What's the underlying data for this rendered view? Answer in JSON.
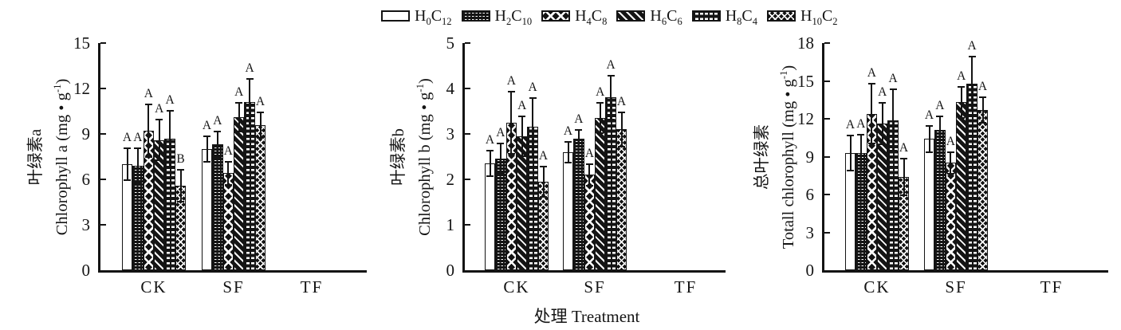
{
  "colors": {
    "ink": "#141414",
    "background": "#ffffff"
  },
  "legend": {
    "items": [
      {
        "h": "H",
        "h_sub": "0",
        "c": "C",
        "c_sub": "12",
        "pattern": "open"
      },
      {
        "h": "H",
        "h_sub": "2",
        "c": "C",
        "c_sub": "10",
        "pattern": "fine-dot-grid"
      },
      {
        "h": "H",
        "h_sub": "4",
        "c": "C",
        "c_sub": "8",
        "pattern": "diamond-lattice"
      },
      {
        "h": "H",
        "h_sub": "6",
        "c": "C",
        "c_sub": "6",
        "pattern": "diagonal-stripes"
      },
      {
        "h": "H",
        "h_sub": "8",
        "c": "C",
        "c_sub": "4",
        "pattern": "dash-grid"
      },
      {
        "h": "H",
        "h_sub": "10",
        "c": "C",
        "c_sub": "2",
        "pattern": "dense-diamond"
      }
    ]
  },
  "xlabel": {
    "zh": "处理",
    "en": "Treatment"
  },
  "chart_data": [
    {
      "type": "bar",
      "panel": "chlorophyll-a",
      "ylabel_zh": "叶绿素a",
      "ylabel_en_pre": "Chlorophyll a (mg • g",
      "ylabel_sup": "-1",
      "ylabel_en_post": ")",
      "ylim": [
        0,
        15
      ],
      "yticks": [
        0,
        3,
        6,
        9,
        12,
        15
      ],
      "categories": [
        "CK",
        "SF",
        "TF"
      ],
      "series_order": [
        "H0C12",
        "H2C10",
        "H4C8",
        "H6C6",
        "H8C4",
        "H10C2"
      ],
      "groups": [
        {
          "label": "CK",
          "values": [
            7.0,
            6.9,
            9.2,
            8.6,
            8.7,
            5.6
          ],
          "errors": [
            1.1,
            1.2,
            1.8,
            1.4,
            1.9,
            1.1
          ],
          "letters": [
            "A",
            "A",
            "A",
            "A",
            "A",
            "B"
          ]
        },
        {
          "label": "SF",
          "values": [
            8.0,
            8.3,
            6.4,
            10.1,
            11.1,
            9.6
          ],
          "errors": [
            0.9,
            0.9,
            0.8,
            1.0,
            1.6,
            0.9
          ],
          "letters": [
            "A",
            "A",
            "A",
            "A",
            "A",
            "A"
          ]
        },
        {
          "label": "TF",
          "values": [],
          "errors": [],
          "letters": []
        }
      ]
    },
    {
      "type": "bar",
      "panel": "chlorophyll-b",
      "ylabel_zh": "叶绿素b",
      "ylabel_en_pre": "Chlorophyll b (mg • g",
      "ylabel_sup": "-1",
      "ylabel_en_post": ")",
      "ylim": [
        0,
        5
      ],
      "yticks": [
        0,
        1,
        2,
        3,
        4,
        5
      ],
      "categories": [
        "CK",
        "SF",
        "TF"
      ],
      "series_order": [
        "H0C12",
        "H2C10",
        "H4C8",
        "H6C6",
        "H8C4",
        "H10C2"
      ],
      "groups": [
        {
          "label": "CK",
          "values": [
            2.35,
            2.45,
            3.25,
            2.95,
            3.15,
            1.95
          ],
          "errors": [
            0.3,
            0.35,
            0.7,
            0.45,
            0.65,
            0.35
          ],
          "letters": [
            "A",
            "A",
            "A",
            "A",
            "A",
            "A"
          ]
        },
        {
          "label": "SF",
          "values": [
            2.6,
            2.9,
            2.1,
            3.35,
            3.8,
            3.1
          ],
          "errors": [
            0.25,
            0.2,
            0.25,
            0.35,
            0.5,
            0.4
          ],
          "letters": [
            "A",
            "A",
            "A",
            "A",
            "A",
            "A"
          ]
        },
        {
          "label": "TF",
          "values": [],
          "errors": [],
          "letters": []
        }
      ]
    },
    {
      "type": "bar",
      "panel": "total-chlorophyll",
      "ylabel_zh": "总叶绿素",
      "ylabel_en_pre": "Totall chlorophyll (mg • g",
      "ylabel_sup": "-1",
      "ylabel_en_post": ")",
      "ylim": [
        0,
        18
      ],
      "yticks": [
        0,
        3,
        6,
        9,
        12,
        15,
        18
      ],
      "categories": [
        "CK",
        "SF",
        "TF"
      ],
      "series_order": [
        "H0C12",
        "H2C10",
        "H4C8",
        "H6C6",
        "H8C4",
        "H10C2"
      ],
      "groups": [
        {
          "label": "CK",
          "values": [
            9.3,
            9.3,
            12.4,
            11.6,
            11.9,
            7.4
          ],
          "errors": [
            1.45,
            1.5,
            2.45,
            1.7,
            2.5,
            1.5
          ],
          "letters": [
            "A",
            "A",
            "A",
            "A",
            "A",
            "A"
          ]
        },
        {
          "label": "SF",
          "values": [
            10.4,
            11.1,
            8.5,
            13.3,
            14.8,
            12.7
          ],
          "errors": [
            1.1,
            1.15,
            0.9,
            1.3,
            2.2,
            1.1
          ],
          "letters": [
            "A",
            "A",
            "A",
            "A",
            "A",
            "A"
          ]
        },
        {
          "label": "TF",
          "values": [],
          "errors": [],
          "letters": []
        }
      ]
    }
  ]
}
